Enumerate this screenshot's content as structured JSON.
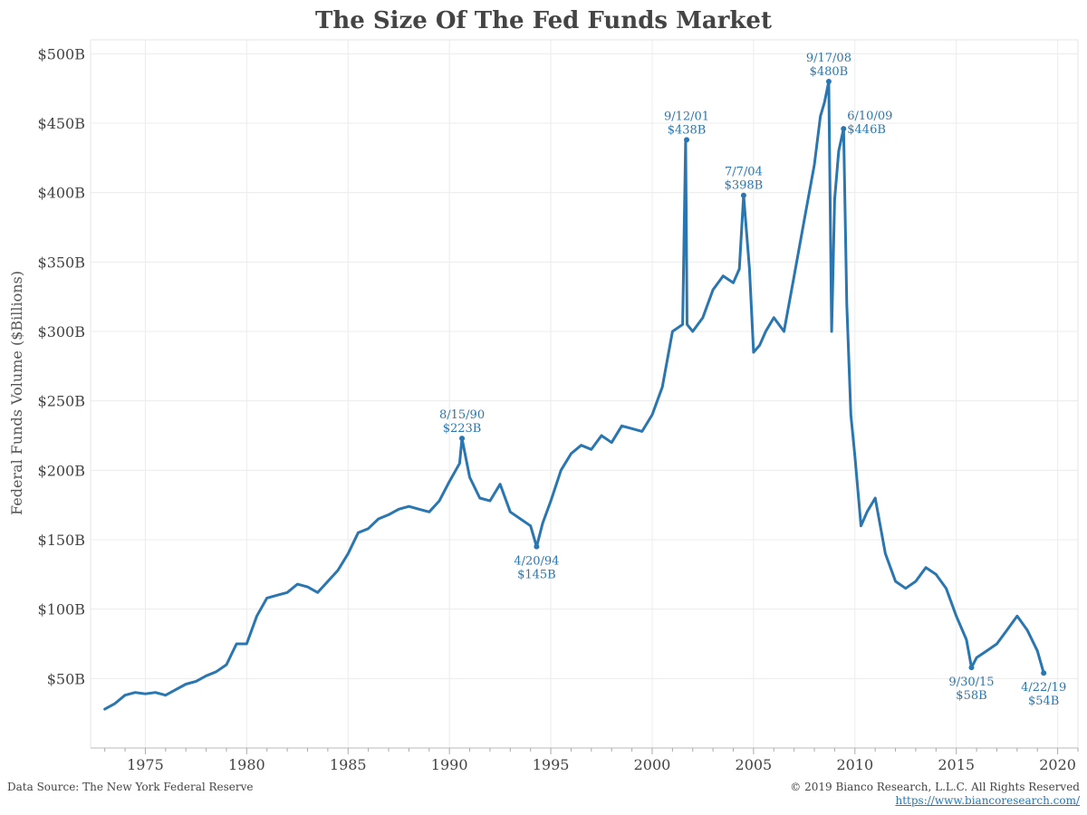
{
  "title": "The Size Of The Fed Funds Market",
  "footer": {
    "source": "Data Source: The New York Federal Reserve",
    "copyright": "© 2019 Bianco Research, L.L.C. All Rights Reserved",
    "url": "https://www.biancoresearch.com/"
  },
  "chart_data": {
    "type": "line",
    "ylabel": "Federal Funds Volume ($Billions)",
    "xlabel": "",
    "xlim": [
      1972.3,
      2021.0
    ],
    "ylim": [
      0,
      510
    ],
    "x_ticks": [
      "1975",
      "1980",
      "1985",
      "1990",
      "1995",
      "2000",
      "2005",
      "2010",
      "2015",
      "2020"
    ],
    "y_ticks": [
      "$50B",
      "$100B",
      "$150B",
      "$200B",
      "$250B",
      "$300B",
      "$350B",
      "$400B",
      "$450B",
      "$500B"
    ],
    "grid": true,
    "line_color": "#2a76b0",
    "series": [
      {
        "x": [
          1973.0,
          1973.5,
          1974.0,
          1974.5,
          1975.0,
          1975.5,
          1976.0,
          1976.5,
          1977.0,
          1977.5,
          1978.0,
          1978.5,
          1979.0,
          1979.5,
          1980.0,
          1980.5,
          1981.0,
          1981.5,
          1982.0,
          1982.5,
          1983.0,
          1983.5,
          1984.0,
          1984.5,
          1985.0,
          1985.5,
          1986.0,
          1986.5,
          1987.0,
          1987.5,
          1988.0,
          1988.5,
          1989.0,
          1989.5,
          1990.0,
          1990.5,
          1990.62,
          1991.0,
          1991.5,
          1992.0,
          1992.5,
          1993.0,
          1993.5,
          1994.0,
          1994.3,
          1994.6,
          1995.0,
          1995.5,
          1996.0,
          1996.5,
          1997.0,
          1997.5,
          1998.0,
          1998.5,
          1999.0,
          1999.5,
          2000.0,
          2000.5,
          2001.0,
          2001.5,
          2001.65,
          2001.72,
          2002.0,
          2002.5,
          2003.0,
          2003.5,
          2004.0,
          2004.3,
          2004.51,
          2004.8,
          2005.0,
          2005.3,
          2005.6,
          2006.0,
          2006.5,
          2007.0,
          2007.5,
          2008.0,
          2008.3,
          2008.5,
          2008.71,
          2008.85,
          2009.0,
          2009.2,
          2009.44,
          2009.6,
          2009.8,
          2010.0,
          2010.3,
          2010.6,
          2011.0,
          2011.5,
          2012.0,
          2012.5,
          2013.0,
          2013.5,
          2014.0,
          2014.5,
          2015.0,
          2015.5,
          2015.75,
          2016.0,
          2016.5,
          2017.0,
          2017.5,
          2018.0,
          2018.5,
          2019.0,
          2019.31
        ],
        "values": [
          28,
          32,
          38,
          40,
          39,
          40,
          38,
          42,
          46,
          48,
          52,
          55,
          60,
          75,
          75,
          95,
          108,
          110,
          112,
          118,
          116,
          112,
          120,
          128,
          140,
          155,
          158,
          165,
          168,
          172,
          174,
          172,
          170,
          178,
          192,
          205,
          223,
          195,
          180,
          178,
          190,
          170,
          165,
          160,
          145,
          162,
          178,
          200,
          212,
          218,
          215,
          225,
          220,
          232,
          230,
          228,
          240,
          260,
          300,
          305,
          438,
          305,
          300,
          310,
          330,
          340,
          335,
          345,
          398,
          345,
          285,
          290,
          300,
          310,
          300,
          340,
          380,
          420,
          455,
          465,
          480,
          300,
          395,
          430,
          446,
          320,
          240,
          210,
          160,
          170,
          180,
          140,
          120,
          115,
          120,
          130,
          125,
          115,
          95,
          78,
          58,
          65,
          70,
          75,
          85,
          95,
          85,
          70,
          54
        ]
      }
    ],
    "annotations": [
      {
        "date": "8/15/90",
        "value": "$223B",
        "x": 1990.62,
        "y": 223,
        "position": "above"
      },
      {
        "date": "4/20/94",
        "value": "$145B",
        "x": 1994.3,
        "y": 145,
        "position": "below"
      },
      {
        "date": "9/12/01",
        "value": "$438B",
        "x": 2001.7,
        "y": 438,
        "position": "above"
      },
      {
        "date": "7/7/04",
        "value": "$398B",
        "x": 2004.51,
        "y": 398,
        "position": "above"
      },
      {
        "date": "9/17/08",
        "value": "$480B",
        "x": 2008.71,
        "y": 480,
        "position": "above"
      },
      {
        "date": "6/10/09",
        "value": "$446B",
        "x": 2009.44,
        "y": 446,
        "position": "right"
      },
      {
        "date": "9/30/15",
        "value": "$58B",
        "x": 2015.75,
        "y": 58,
        "position": "below"
      },
      {
        "date": "4/22/19",
        "value": "$54B",
        "x": 2019.31,
        "y": 54,
        "position": "below"
      }
    ]
  }
}
